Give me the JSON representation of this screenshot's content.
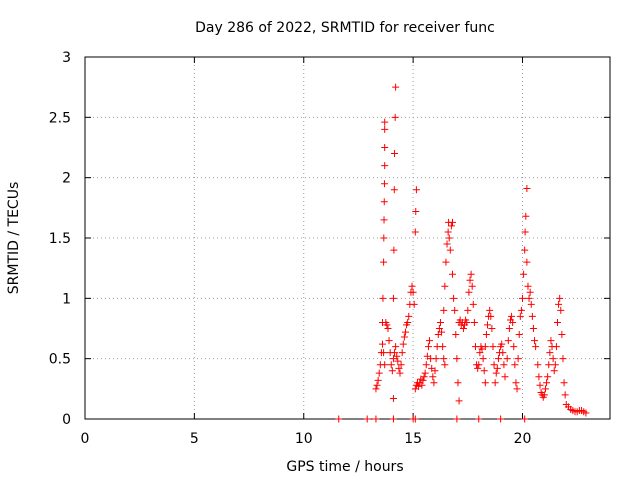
{
  "chart_data": {
    "type": "scatter",
    "title": "Day 286 of 2022, SRMTID for receiver func",
    "xlabel": "GPS time / hours",
    "ylabel": "SRMTID / TECUs",
    "xlim": [
      0,
      24
    ],
    "ylim": [
      0,
      3
    ],
    "x_ticks": [
      0,
      5,
      10,
      15,
      20
    ],
    "x_tick_labels": [
      "0",
      "5",
      "10",
      "15",
      "20"
    ],
    "y_ticks": [
      0,
      0.5,
      1,
      1.5,
      2,
      2.5,
      3
    ],
    "y_tick_labels": [
      "0",
      "0.5",
      "1",
      "1.5",
      "2",
      "2.5",
      "3"
    ],
    "grid": true,
    "marker": "+",
    "colors": {
      "series": "#ff0000",
      "axes": "#000000",
      "grid": "#a0a0a0"
    },
    "series": [
      {
        "name": "SRMTID",
        "points": [
          [
            11.6,
            0
          ],
          [
            12.9,
            0
          ],
          [
            13.3,
            0
          ],
          [
            14.1,
            0
          ],
          [
            15.0,
            0
          ],
          [
            15.1,
            0
          ],
          [
            17.0,
            0
          ],
          [
            18.0,
            0
          ],
          [
            19.0,
            0
          ],
          [
            20.1,
            0
          ],
          [
            13.3,
            0.25
          ],
          [
            13.35,
            0.28
          ],
          [
            13.4,
            0.32
          ],
          [
            13.45,
            0.38
          ],
          [
            13.5,
            0.45
          ],
          [
            13.55,
            0.55
          ],
          [
            13.6,
            0.62
          ],
          [
            13.65,
            0.55
          ],
          [
            13.7,
            0.45
          ],
          [
            13.6,
            0.8
          ],
          [
            13.62,
            1.0
          ],
          [
            13.65,
            1.3
          ],
          [
            13.66,
            1.5
          ],
          [
            13.67,
            1.65
          ],
          [
            13.68,
            1.8
          ],
          [
            13.69,
            1.95
          ],
          [
            13.7,
            2.1
          ],
          [
            13.7,
            2.25
          ],
          [
            13.7,
            2.4
          ],
          [
            13.7,
            2.46
          ],
          [
            13.75,
            0.8
          ],
          [
            13.8,
            0.78
          ],
          [
            13.85,
            0.75
          ],
          [
            13.9,
            0.65
          ],
          [
            13.95,
            0.55
          ],
          [
            14.0,
            0.45
          ],
          [
            14.05,
            0.4
          ],
          [
            14.1,
            0.5
          ],
          [
            14.15,
            0.55
          ],
          [
            14.2,
            0.6
          ],
          [
            14.1,
            1.0
          ],
          [
            14.12,
            1.4
          ],
          [
            14.14,
            1.9
          ],
          [
            14.15,
            2.2
          ],
          [
            14.18,
            2.5
          ],
          [
            14.2,
            2.75
          ],
          [
            14.1,
            0.17
          ],
          [
            14.25,
            0.52
          ],
          [
            14.3,
            0.48
          ],
          [
            14.35,
            0.42
          ],
          [
            14.4,
            0.38
          ],
          [
            14.45,
            0.45
          ],
          [
            14.5,
            0.55
          ],
          [
            14.55,
            0.62
          ],
          [
            14.6,
            0.68
          ],
          [
            14.65,
            0.72
          ],
          [
            14.7,
            0.78
          ],
          [
            14.75,
            0.8
          ],
          [
            14.8,
            0.85
          ],
          [
            14.85,
            0.95
          ],
          [
            14.9,
            1.05
          ],
          [
            14.95,
            1.1
          ],
          [
            15.0,
            1.05
          ],
          [
            15.05,
            0.95
          ],
          [
            15.1,
            1.55
          ],
          [
            15.12,
            1.72
          ],
          [
            15.15,
            1.9
          ],
          [
            15.1,
            0.25
          ],
          [
            15.15,
            0.28
          ],
          [
            15.2,
            0.3
          ],
          [
            15.25,
            0.27
          ],
          [
            15.3,
            0.3
          ],
          [
            15.35,
            0.33
          ],
          [
            15.4,
            0.28
          ],
          [
            15.45,
            0.32
          ],
          [
            15.5,
            0.35
          ],
          [
            15.55,
            0.38
          ],
          [
            15.6,
            0.45
          ],
          [
            15.65,
            0.52
          ],
          [
            15.7,
            0.6
          ],
          [
            15.75,
            0.65
          ],
          [
            15.8,
            0.5
          ],
          [
            15.85,
            0.42
          ],
          [
            15.9,
            0.35
          ],
          [
            15.95,
            0.3
          ],
          [
            16.0,
            0.4
          ],
          [
            16.05,
            0.5
          ],
          [
            16.1,
            0.6
          ],
          [
            16.15,
            0.7
          ],
          [
            16.2,
            0.75
          ],
          [
            16.25,
            0.8
          ],
          [
            16.3,
            0.72
          ],
          [
            16.35,
            0.6
          ],
          [
            16.4,
            0.5
          ],
          [
            16.45,
            0.45
          ],
          [
            16.4,
            0.9
          ],
          [
            16.45,
            1.1
          ],
          [
            16.5,
            1.3
          ],
          [
            16.55,
            1.45
          ],
          [
            16.6,
            1.55
          ],
          [
            16.62,
            1.63
          ],
          [
            16.65,
            1.5
          ],
          [
            16.7,
            1.4
          ],
          [
            16.75,
            1.6
          ],
          [
            16.8,
            1.63
          ],
          [
            16.8,
            1.2
          ],
          [
            16.85,
            1.0
          ],
          [
            16.9,
            0.9
          ],
          [
            16.95,
            0.7
          ],
          [
            17.0,
            0.5
          ],
          [
            17.05,
            0.3
          ],
          [
            17.1,
            0.15
          ],
          [
            17.1,
            0.8
          ],
          [
            17.15,
            0.82
          ],
          [
            17.2,
            0.78
          ],
          [
            17.25,
            0.8
          ],
          [
            17.3,
            0.75
          ],
          [
            17.35,
            0.78
          ],
          [
            17.4,
            0.82
          ],
          [
            17.45,
            0.8
          ],
          [
            17.5,
            0.9
          ],
          [
            17.55,
            1.05
          ],
          [
            17.6,
            1.15
          ],
          [
            17.65,
            1.2
          ],
          [
            17.7,
            1.1
          ],
          [
            17.75,
            0.95
          ],
          [
            17.8,
            0.8
          ],
          [
            17.85,
            0.6
          ],
          [
            17.9,
            0.45
          ],
          [
            17.95,
            0.42
          ],
          [
            18.0,
            0.45
          ],
          [
            18.05,
            0.55
          ],
          [
            18.1,
            0.6
          ],
          [
            18.15,
            0.58
          ],
          [
            18.2,
            0.5
          ],
          [
            18.25,
            0.4
          ],
          [
            18.3,
            0.3
          ],
          [
            18.3,
            0.6
          ],
          [
            18.35,
            0.7
          ],
          [
            18.4,
            0.78
          ],
          [
            18.45,
            0.85
          ],
          [
            18.5,
            0.9
          ],
          [
            18.55,
            0.85
          ],
          [
            18.6,
            0.75
          ],
          [
            18.65,
            0.6
          ],
          [
            18.7,
            0.45
          ],
          [
            18.75,
            0.3
          ],
          [
            18.8,
            0.38
          ],
          [
            18.85,
            0.42
          ],
          [
            18.9,
            0.5
          ],
          [
            18.95,
            0.55
          ],
          [
            19.0,
            0.6
          ],
          [
            19.05,
            0.62
          ],
          [
            19.1,
            0.55
          ],
          [
            19.15,
            0.45
          ],
          [
            19.2,
            0.35
          ],
          [
            19.3,
            0.5
          ],
          [
            19.35,
            0.65
          ],
          [
            19.4,
            0.75
          ],
          [
            19.45,
            0.82
          ],
          [
            19.5,
            0.85
          ],
          [
            19.55,
            0.8
          ],
          [
            19.6,
            0.6
          ],
          [
            19.65,
            0.45
          ],
          [
            19.7,
            0.3
          ],
          [
            19.75,
            0.25
          ],
          [
            19.8,
            0.5
          ],
          [
            19.85,
            0.7
          ],
          [
            19.9,
            0.85
          ],
          [
            19.95,
            0.9
          ],
          [
            20.0,
            1.0
          ],
          [
            20.05,
            1.2
          ],
          [
            20.1,
            1.4
          ],
          [
            20.12,
            1.55
          ],
          [
            20.15,
            1.68
          ],
          [
            20.2,
            1.91
          ],
          [
            20.2,
            1.3
          ],
          [
            20.25,
            1.1
          ],
          [
            20.3,
            1.0
          ],
          [
            20.35,
            1.05
          ],
          [
            20.4,
            0.95
          ],
          [
            20.45,
            0.85
          ],
          [
            20.5,
            0.75
          ],
          [
            20.55,
            0.65
          ],
          [
            20.6,
            0.6
          ],
          [
            20.7,
            0.45
          ],
          [
            20.75,
            0.35
          ],
          [
            20.8,
            0.28
          ],
          [
            20.85,
            0.22
          ],
          [
            20.9,
            0.2
          ],
          [
            20.95,
            0.18
          ],
          [
            21.0,
            0.2
          ],
          [
            21.05,
            0.25
          ],
          [
            21.1,
            0.3
          ],
          [
            21.15,
            0.35
          ],
          [
            21.2,
            0.45
          ],
          [
            21.25,
            0.55
          ],
          [
            21.3,
            0.65
          ],
          [
            21.35,
            0.6
          ],
          [
            21.4,
            0.5
          ],
          [
            21.45,
            0.4
          ],
          [
            21.5,
            0.45
          ],
          [
            21.55,
            0.6
          ],
          [
            21.6,
            0.8
          ],
          [
            21.65,
            0.95
          ],
          [
            21.7,
            1.0
          ],
          [
            21.75,
            0.9
          ],
          [
            21.8,
            0.7
          ],
          [
            21.85,
            0.5
          ],
          [
            21.9,
            0.3
          ],
          [
            21.95,
            0.2
          ],
          [
            22.0,
            0.12
          ],
          [
            22.1,
            0.1
          ],
          [
            22.2,
            0.08
          ],
          [
            22.3,
            0.07
          ],
          [
            22.4,
            0.06
          ],
          [
            22.5,
            0.06
          ],
          [
            22.6,
            0.07
          ],
          [
            22.7,
            0.07
          ],
          [
            22.8,
            0.06
          ],
          [
            22.9,
            0.05
          ]
        ]
      }
    ]
  }
}
